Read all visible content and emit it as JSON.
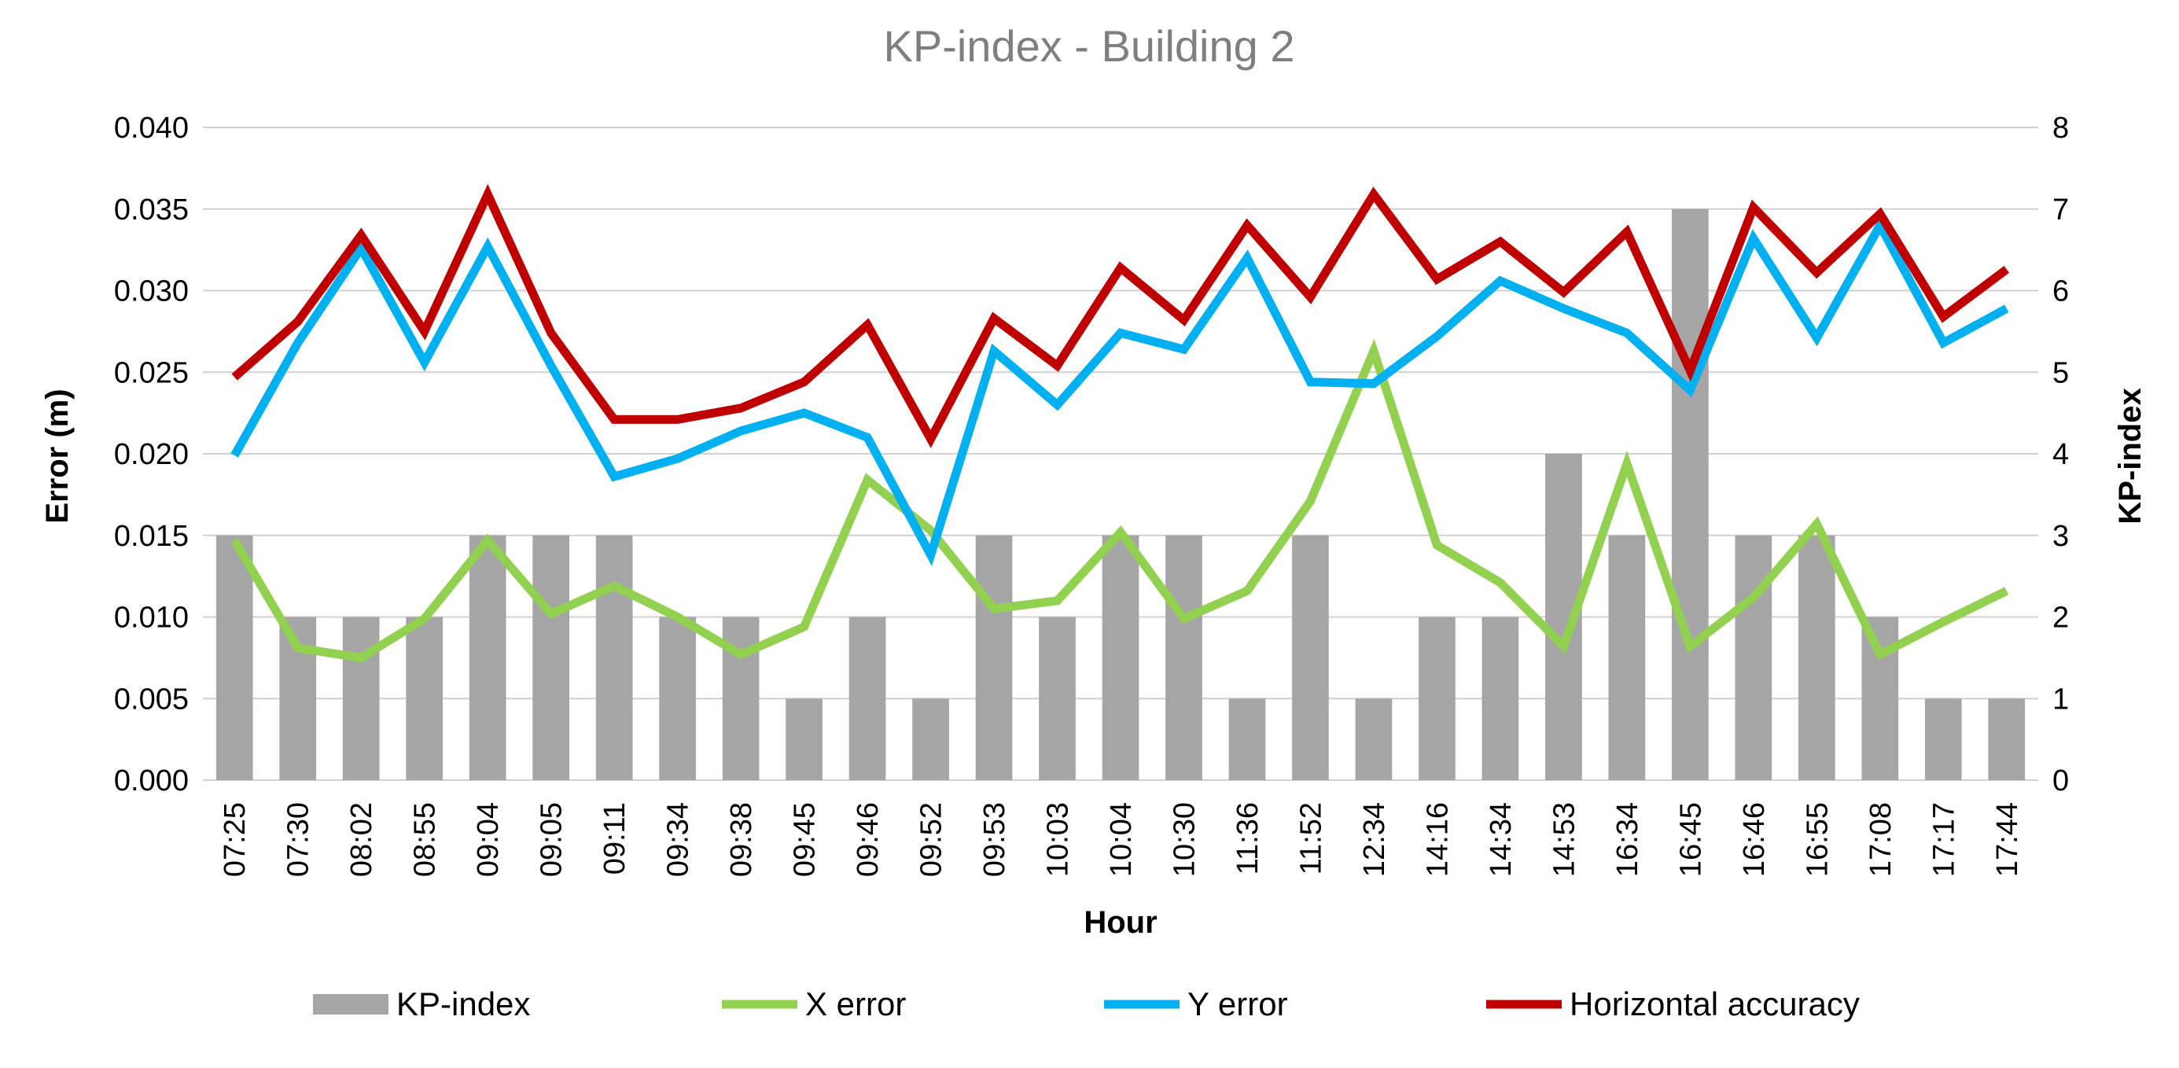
{
  "chart_data": {
    "type": "bar",
    "title": "KP-index - Building 2",
    "xlabel": "Hour",
    "ylabel": "Error (m)",
    "y2label": "KP-index",
    "categories": [
      "07:25",
      "07:30",
      "08:02",
      "08:55",
      "09:04",
      "09:05",
      "09:11",
      "09:34",
      "09:38",
      "09:45",
      "09:46",
      "09:52",
      "09:53",
      "10:03",
      "10:04",
      "10:30",
      "11:36",
      "11:52",
      "12:34",
      "14:16",
      "14:34",
      "14:53",
      "16:34",
      "16:45",
      "16:46",
      "16:55",
      "17:08",
      "17:17",
      "17:44"
    ],
    "ylim": [
      0,
      0.04
    ],
    "y2lim": [
      0,
      8
    ],
    "yticks": [
      "0.000",
      "0.005",
      "0.010",
      "0.015",
      "0.020",
      "0.025",
      "0.030",
      "0.035",
      "0.040"
    ],
    "y2ticks": [
      "0",
      "1",
      "2",
      "3",
      "4",
      "5",
      "6",
      "7",
      "8"
    ],
    "grid": true,
    "legend_position": "bottom",
    "series": [
      {
        "name": "KP-index",
        "kind": "bar",
        "axis": "right",
        "color": "#a5a5a5",
        "values": [
          3,
          2,
          2,
          2,
          3,
          3,
          3,
          2,
          2,
          1,
          2,
          1,
          3,
          2,
          3,
          3,
          1,
          3,
          1,
          2,
          2,
          4,
          3,
          7,
          3,
          3,
          2,
          1,
          1
        ]
      },
      {
        "name": "X error",
        "kind": "line",
        "axis": "left",
        "color": "#92d050",
        "values": [
          0.0147,
          0.0081,
          0.0075,
          0.0099,
          0.0147,
          0.0102,
          0.0119,
          0.01,
          0.0077,
          0.0094,
          0.0184,
          0.0153,
          0.0105,
          0.011,
          0.0152,
          0.0099,
          0.0116,
          0.0171,
          0.0263,
          0.0144,
          0.0121,
          0.0082,
          0.0194,
          0.0082,
          0.0112,
          0.0157,
          0.0077,
          0.0097,
          0.0116
        ]
      },
      {
        "name": "Y error",
        "kind": "line",
        "axis": "left",
        "color": "#00b0f0",
        "values": [
          0.0199,
          0.0268,
          0.0326,
          0.0256,
          0.0327,
          0.0254,
          0.0186,
          0.0197,
          0.0214,
          0.0225,
          0.021,
          0.0138,
          0.0263,
          0.023,
          0.0274,
          0.0264,
          0.032,
          0.0244,
          0.0243,
          0.0272,
          0.0306,
          0.0289,
          0.0274,
          0.0239,
          0.0332,
          0.0271,
          0.034,
          0.0268,
          0.0289
        ]
      },
      {
        "name": "Horizontal accuracy",
        "kind": "line",
        "axis": "left",
        "color": "#c00000",
        "values": [
          0.0247,
          0.0281,
          0.0334,
          0.0275,
          0.0359,
          0.0274,
          0.0221,
          0.0221,
          0.0228,
          0.0244,
          0.0279,
          0.0209,
          0.0283,
          0.0254,
          0.0314,
          0.0282,
          0.034,
          0.0296,
          0.0359,
          0.0307,
          0.033,
          0.0299,
          0.0336,
          0.0251,
          0.0351,
          0.0311,
          0.0347,
          0.0284,
          0.0313
        ]
      }
    ]
  }
}
